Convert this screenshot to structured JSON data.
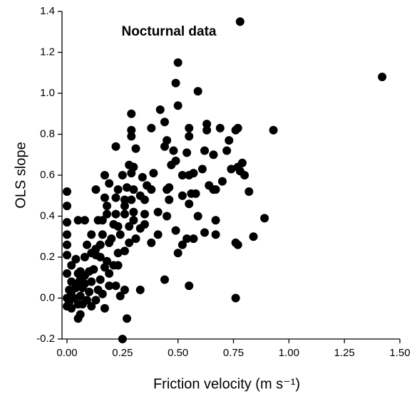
{
  "chart_data": {
    "type": "scatter",
    "title": "Nocturnal data",
    "xlabel": "Friction velocity (m s⁻¹)",
    "ylabel": "OLS slope",
    "color": "#000000",
    "xlim": [
      -0.0225,
      1.5
    ],
    "ylim": [
      -0.2,
      1.4
    ],
    "xticks": [
      {
        "value": 0,
        "label": "0.00"
      },
      {
        "value": 0.25,
        "label": "0.25"
      },
      {
        "value": 0.5,
        "label": "0.50"
      },
      {
        "value": 0.75,
        "label": "0.75"
      },
      {
        "value": 1,
        "label": "1.00"
      },
      {
        "value": 1.25,
        "label": "1.25"
      },
      {
        "value": 1.5,
        "label": "1.50"
      }
    ],
    "yticks": [
      -0.2,
      {
        "value": 0,
        "label": "0.0"
      },
      0.2,
      0.4,
      0.6,
      0.8,
      {
        "value": 1,
        "label": "1.0"
      },
      1.2,
      1.4
    ],
    "x": [
      0.78,
      1.42,
      0.5,
      0.49,
      0.59,
      0.42,
      0.5,
      0.29,
      0.22,
      0.93,
      0.77,
      0.76,
      0.38,
      0.44,
      0.55,
      0.63,
      0.63,
      0.55,
      0.29,
      0.29,
      0.31,
      0.45,
      0.44,
      0.73,
      0.69,
      0.62,
      0.66,
      0.72,
      0.54,
      0.79,
      0.48,
      0.49,
      0.47,
      0.28,
      0.3,
      0.29,
      0.39,
      0.34,
      0.25,
      0.17,
      0.52,
      0.55,
      0.57,
      0.61,
      0.74,
      0.77,
      0.78,
      0.8,
      0.7,
      0.64,
      0.66,
      0.82,
      0.67,
      0.58,
      0.56,
      0.52,
      0.45,
      0.46,
      0.46,
      0.38,
      0.36,
      0.27,
      0.3,
      0.23,
      0.19,
      0.13,
      0.17,
      0.22,
      0.26,
      0.29,
      0.33,
      0.35,
      0.26,
      0.18,
      0.0,
      0.0,
      0.18,
      0.22,
      0.26,
      0.3,
      0.35,
      0.41,
      0.59,
      0.67,
      0.89,
      0.55,
      0.45,
      0.16,
      0.21,
      0.23,
      0.28,
      0.33,
      0.35,
      0.3,
      0.0,
      0.05,
      0.08,
      0.14,
      0.49,
      0.62,
      0.41,
      0.67,
      0.84,
      0.11,
      0.16,
      0.2,
      0.24,
      0.0,
      0.19,
      0.28,
      0.31,
      0.38,
      0.54,
      0.57,
      0.76,
      0.77,
      0.09,
      0.15,
      0.0,
      0.23,
      0.5,
      0.52,
      0.26,
      0.11,
      0.13,
      0.08,
      0.15,
      0.04,
      0.0,
      0.18,
      0.21,
      0.23,
      0.17,
      0.12,
      0.06,
      0.1,
      0.0,
      0.02,
      0.19,
      0.15,
      0.44,
      0.06,
      0.08,
      0.11,
      0.02,
      0.19,
      0.22,
      0.26,
      0.33,
      0.55,
      0.14,
      0.04,
      0.07,
      0.01,
      0.1,
      0.16,
      0.76,
      0.24,
      0.0,
      0.03,
      0.06,
      0.09,
      0.13,
      0.01,
      0.05,
      0.07,
      0.0,
      0.02,
      0.11,
      0.17,
      0.06,
      0.05,
      0.27,
      0.25,
      0.02,
      0.04,
      0.08,
      0.05,
      0.13
    ],
    "values": [
      1.35,
      1.08,
      1.15,
      1.05,
      1.01,
      0.92,
      0.94,
      0.9,
      0.74,
      0.82,
      0.83,
      0.82,
      0.83,
      0.86,
      0.79,
      0.82,
      0.85,
      0.83,
      0.82,
      0.79,
      0.73,
      0.77,
      0.74,
      0.77,
      0.83,
      0.72,
      0.7,
      0.72,
      0.71,
      0.66,
      0.72,
      0.67,
      0.65,
      0.65,
      0.64,
      0.61,
      0.61,
      0.59,
      0.6,
      0.6,
      0.6,
      0.6,
      0.61,
      0.63,
      0.63,
      0.64,
      0.62,
      0.6,
      0.57,
      0.55,
      0.53,
      0.52,
      0.53,
      0.51,
      0.51,
      0.5,
      0.53,
      0.54,
      0.48,
      0.53,
      0.55,
      0.54,
      0.53,
      0.53,
      0.56,
      0.53,
      0.49,
      0.49,
      0.48,
      0.48,
      0.5,
      0.48,
      0.45,
      0.45,
      0.45,
      0.52,
      0.41,
      0.41,
      0.41,
      0.42,
      0.41,
      0.42,
      0.4,
      0.38,
      0.39,
      0.46,
      0.4,
      0.38,
      0.36,
      0.35,
      0.35,
      0.34,
      0.36,
      0.38,
      0.37,
      0.38,
      0.38,
      0.38,
      0.33,
      0.32,
      0.31,
      0.31,
      0.3,
      0.31,
      0.31,
      0.29,
      0.31,
      0.31,
      0.27,
      0.27,
      0.29,
      0.27,
      0.29,
      0.29,
      0.27,
      0.26,
      0.26,
      0.26,
      0.26,
      0.22,
      0.22,
      0.26,
      0.23,
      0.22,
      0.21,
      0.2,
      0.2,
      0.19,
      0.21,
      0.18,
      0.16,
      0.16,
      0.15,
      0.14,
      0.13,
      0.13,
      0.12,
      0.16,
      0.12,
      0.09,
      0.09,
      0.09,
      0.07,
      0.08,
      0.08,
      0.06,
      0.06,
      0.04,
      0.04,
      0.06,
      0.04,
      0.05,
      0.05,
      0.04,
      0.03,
      0.02,
      0.0,
      0.01,
      0.0,
      0.0,
      0.01,
      -0.01,
      -0.01,
      -0.02,
      -0.03,
      -0.03,
      -0.04,
      -0.05,
      -0.04,
      -0.05,
      -0.08,
      -0.1,
      -0.1,
      -0.2,
      0.03,
      0.07,
      0.11,
      0.12,
      0.24
    ]
  }
}
